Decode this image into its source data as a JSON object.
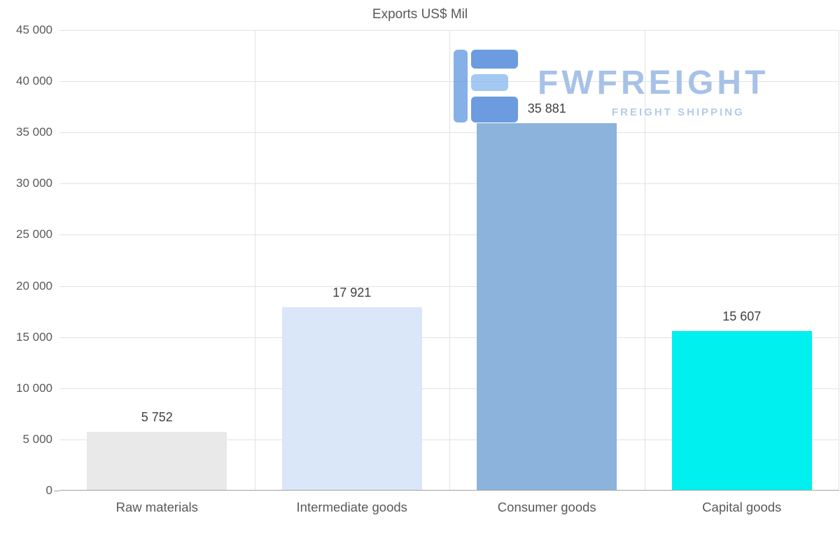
{
  "chart_data": {
    "type": "bar",
    "title": "Exports US$ Mil",
    "xlabel": "",
    "ylabel": "",
    "categories": [
      "Raw materials",
      "Intermediate goods",
      "Consumer goods",
      "Capital goods"
    ],
    "values": [
      5752,
      17921,
      35881,
      15607
    ],
    "value_labels": [
      "5 752",
      "17 921",
      "35 881",
      "15 607"
    ],
    "bar_colors": [
      "#e9e9e9",
      "#d9e7f8",
      "#8cb3db",
      "#00efef"
    ],
    "ylim": [
      0,
      45000
    ],
    "ytick_step": 5000,
    "yticks": [
      {
        "value": 0,
        "label": "0"
      },
      {
        "value": 5000,
        "label": "5 000"
      },
      {
        "value": 10000,
        "label": "10 000"
      },
      {
        "value": 15000,
        "label": "15 000"
      },
      {
        "value": 20000,
        "label": "20 000"
      },
      {
        "value": 25000,
        "label": "25 000"
      },
      {
        "value": 30000,
        "label": "30 000"
      },
      {
        "value": 35000,
        "label": "35 000"
      },
      {
        "value": 40000,
        "label": "40 000"
      },
      {
        "value": 45000,
        "label": "45 000"
      }
    ],
    "grid": true,
    "legend": false
  },
  "watermark": {
    "brand": "FWFREIGHT",
    "tagline": "FREIGHT SHIPPING",
    "brand_color": "#a7c2e8",
    "tagline_color": "#b3cbee",
    "icon_colors": {
      "dark": "#4d87d9",
      "light": "#90bcf0",
      "bar": "#6b9fe3"
    }
  },
  "colors": {
    "axis_text": "#595959",
    "value_text": "#404040",
    "gridline": "#e2e2e2",
    "axis_line": "#a3a3a3",
    "background": "#ffffff"
  }
}
